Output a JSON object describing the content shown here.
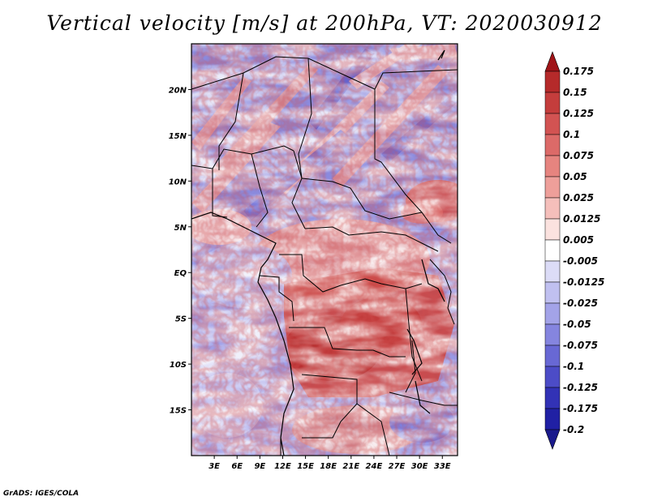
{
  "title": "Vertical velocity [m/s] at 200hPa, VT: 2020030912",
  "credit": "GrADS: IGES/COLA",
  "chart_data": {
    "type": "heatmap",
    "variable": "Vertical velocity",
    "units": "m/s",
    "level_hpa": 200,
    "valid_time": "2020030912",
    "lon_range": [
      0,
      35
    ],
    "lat_range": [
      -20,
      25
    ],
    "lat_ticks": [
      {
        "lat": 20,
        "label": "20N"
      },
      {
        "lat": 15,
        "label": "15N"
      },
      {
        "lat": 10,
        "label": "10N"
      },
      {
        "lat": 5,
        "label": "5N"
      },
      {
        "lat": 0,
        "label": "EQ"
      },
      {
        "lat": -5,
        "label": "5S"
      },
      {
        "lat": -10,
        "label": "10S"
      },
      {
        "lat": -15,
        "label": "15S"
      }
    ],
    "lon_ticks": [
      {
        "lon": 3,
        "label": "3E"
      },
      {
        "lon": 6,
        "label": "6E"
      },
      {
        "lon": 9,
        "label": "9E"
      },
      {
        "lon": 12,
        "label": "12E"
      },
      {
        "lon": 15,
        "label": "15E"
      },
      {
        "lon": 18,
        "label": "18E"
      },
      {
        "lon": 21,
        "label": "21E"
      },
      {
        "lon": 24,
        "label": "24E"
      },
      {
        "lon": 27,
        "label": "27E"
      },
      {
        "lon": 30,
        "label": "30E"
      },
      {
        "lon": 33,
        "label": "33E"
      }
    ],
    "colorbar": {
      "labels": [
        "0.175",
        "0.15",
        "0.125",
        "0.1",
        "0.075",
        "0.05",
        "0.025",
        "0.0125",
        "0.005",
        "-0.005",
        "-0.0125",
        "-0.025",
        "-0.05",
        "-0.075",
        "-0.1",
        "-0.125",
        "-0.175",
        "-0.2"
      ],
      "colors": [
        "#a01418",
        "#b52a2a",
        "#c43d3c",
        "#d25352",
        "#dc6a68",
        "#e6847f",
        "#ee9f9a",
        "#f5bfbb",
        "#fbe2df",
        "#ffffff",
        "#dcdcf7",
        "#c0c0f0",
        "#a3a3e8",
        "#8585df",
        "#6868d4",
        "#4c4cc7",
        "#3232b6",
        "#2020a4",
        "#1a1a8c"
      ]
    },
    "pattern": {
      "north": "predominantly negative (blue) with SW-NE oriented streaks",
      "center_south": "strong positive (red) cellular convection over Congo basin / Angola",
      "east_edge_8N": "positive (red) patch near 33E"
    }
  }
}
